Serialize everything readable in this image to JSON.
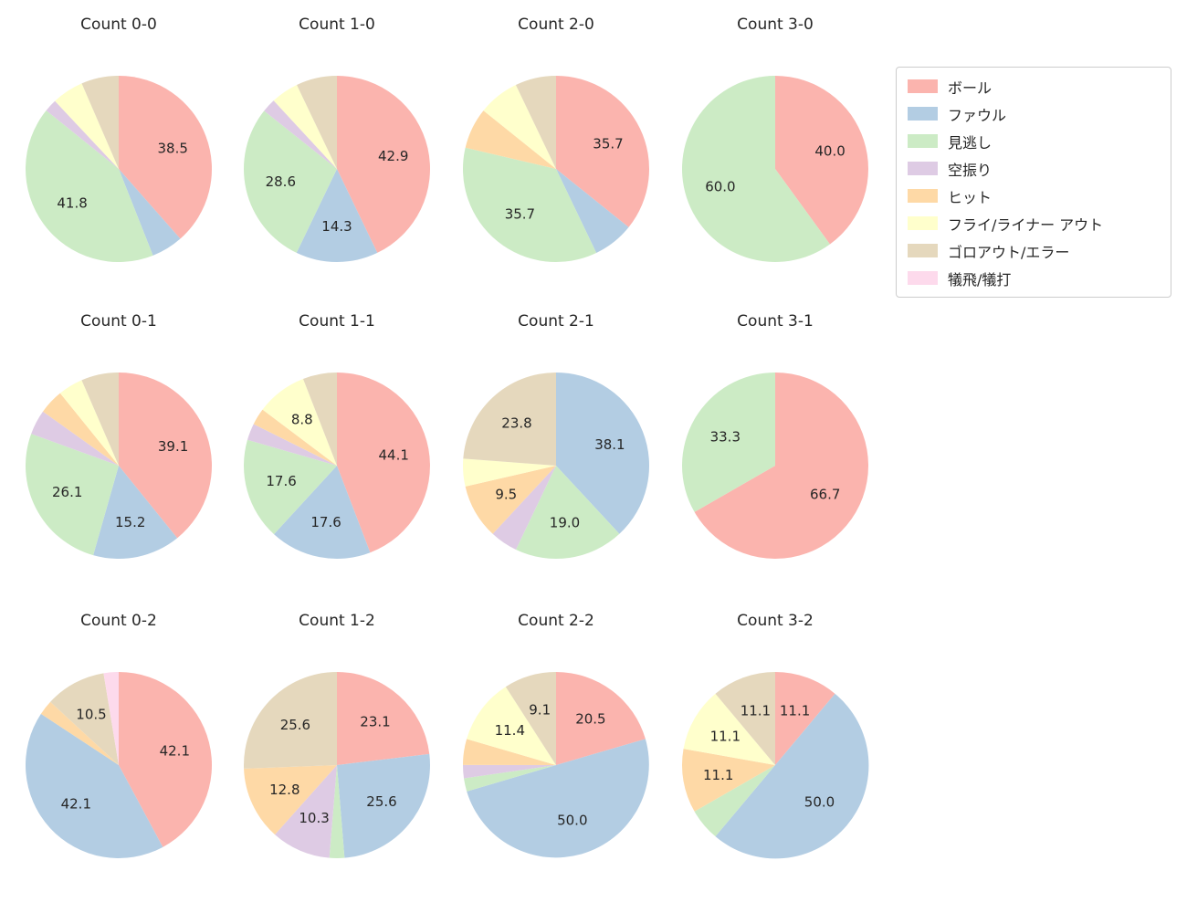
{
  "figure": {
    "background": "#ffffff",
    "text_color": "#262626"
  },
  "legend": {
    "items": [
      {
        "id": "ball",
        "label": "ボール",
        "color": "#fbb4ae"
      },
      {
        "id": "foul",
        "label": "ファウル",
        "color": "#b3cde3"
      },
      {
        "id": "called-strike",
        "label": "見逃し",
        "color": "#ccebc5"
      },
      {
        "id": "swinging-strike",
        "label": "空振り",
        "color": "#decbe4"
      },
      {
        "id": "hit",
        "label": "ヒット",
        "color": "#fed9a6"
      },
      {
        "id": "fly-liner-out",
        "label": "フライ/ライナー アウト",
        "color": "#ffffcc"
      },
      {
        "id": "groundout-error",
        "label": "ゴロアウト/エラー",
        "color": "#e5d8bd"
      },
      {
        "id": "sacrifice",
        "label": "犠飛/犠打",
        "color": "#fddaec"
      }
    ]
  },
  "chart_data": {
    "type": "pie",
    "start_angle": "top",
    "direction": "clockwise",
    "pct_label_min": 8,
    "pct_label_distance": 0.62,
    "grid": "3 rows x 4 columns",
    "categories": [
      "ボール",
      "ファウル",
      "見逃し",
      "空振り",
      "ヒット",
      "フライ/ライナー アウト",
      "ゴロアウト/エラー",
      "犠飛/犠打"
    ],
    "charts": [
      {
        "title": "Count 0-0",
        "values": [
          38.5,
          5.5,
          41.8,
          2.2,
          0,
          5.5,
          6.5,
          0
        ]
      },
      {
        "title": "Count 1-0",
        "values": [
          42.9,
          14.3,
          28.6,
          2.4,
          0,
          4.8,
          7.1,
          0
        ]
      },
      {
        "title": "Count 2-0",
        "values": [
          35.7,
          7.1,
          35.7,
          0,
          7.1,
          7.1,
          7.1,
          0
        ]
      },
      {
        "title": "Count 3-0",
        "values": [
          40.0,
          0,
          60.0,
          0,
          0,
          0,
          0,
          0
        ]
      },
      {
        "title": "Count 0-1",
        "values": [
          39.1,
          15.2,
          26.1,
          4.3,
          4.3,
          4.3,
          6.5,
          0
        ]
      },
      {
        "title": "Count 1-1",
        "values": [
          44.1,
          17.6,
          17.6,
          2.9,
          2.9,
          8.8,
          5.9,
          0
        ]
      },
      {
        "title": "Count 2-1",
        "values": [
          0,
          38.1,
          19.0,
          4.8,
          9.5,
          4.8,
          23.8,
          0
        ]
      },
      {
        "title": "Count 3-1",
        "values": [
          66.7,
          0,
          33.3,
          0,
          0,
          0,
          0,
          0
        ]
      },
      {
        "title": "Count 0-2",
        "values": [
          42.1,
          42.1,
          0,
          0,
          2.6,
          0,
          10.5,
          2.6
        ]
      },
      {
        "title": "Count 1-2",
        "values": [
          23.1,
          25.6,
          2.6,
          10.3,
          12.8,
          0,
          25.6,
          0
        ]
      },
      {
        "title": "Count 2-2",
        "values": [
          20.5,
          50.0,
          2.3,
          2.3,
          4.5,
          11.4,
          9.1,
          0
        ]
      },
      {
        "title": "Count 3-2",
        "values": [
          11.1,
          50.0,
          5.6,
          0,
          11.1,
          11.1,
          11.1,
          0
        ]
      }
    ]
  }
}
